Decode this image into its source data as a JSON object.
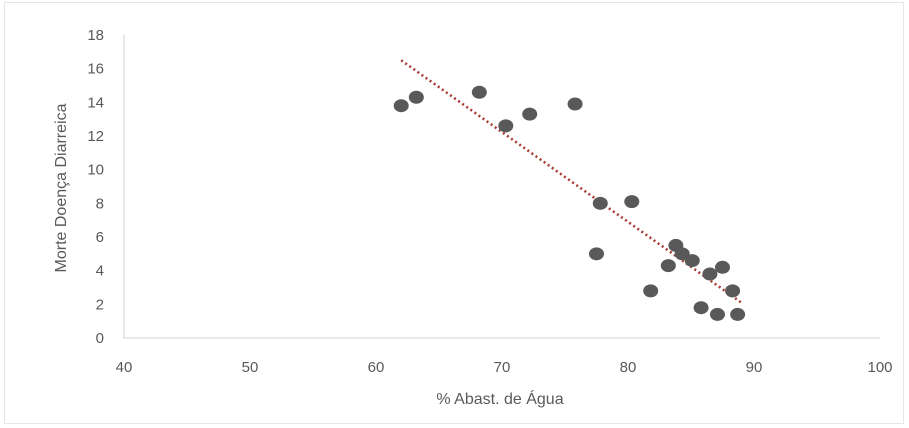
{
  "chart_data": {
    "type": "scatter",
    "title": "",
    "xlabel": "% Abast. de Água",
    "ylabel": "Morte Doença Diarreica",
    "xlim": [
      40,
      100
    ],
    "ylim": [
      0,
      18
    ],
    "x_ticks": [
      "40",
      "50",
      "60",
      "70",
      "80",
      "90",
      "100"
    ],
    "y_ticks": [
      "0",
      "2",
      "4",
      "6",
      "8",
      "10",
      "12",
      "14",
      "16",
      "18"
    ],
    "grid": false,
    "legend": "none",
    "marker_color": "#595959",
    "trendline": {
      "style": "dotted",
      "color": "#a83a32",
      "from": [
        62,
        16.5
      ],
      "to": [
        89,
        2.1
      ]
    },
    "points": [
      {
        "x": 62,
        "y": 13.8
      },
      {
        "x": 63.2,
        "y": 14.3
      },
      {
        "x": 68.2,
        "y": 14.6
      },
      {
        "x": 70.3,
        "y": 12.6
      },
      {
        "x": 72.2,
        "y": 13.3
      },
      {
        "x": 75.8,
        "y": 13.9
      },
      {
        "x": 77.5,
        "y": 5
      },
      {
        "x": 77.8,
        "y": 8
      },
      {
        "x": 80.3,
        "y": 8.1
      },
      {
        "x": 81.8,
        "y": 2.8
      },
      {
        "x": 83.2,
        "y": 4.3
      },
      {
        "x": 83.8,
        "y": 5.5
      },
      {
        "x": 84.3,
        "y": 5
      },
      {
        "x": 85.1,
        "y": 4.6
      },
      {
        "x": 85.8,
        "y": 1.8
      },
      {
        "x": 86.5,
        "y": 3.8
      },
      {
        "x": 87.1,
        "y": 1.4
      },
      {
        "x": 87.5,
        "y": 4.2
      },
      {
        "x": 88.3,
        "y": 2.8
      },
      {
        "x": 88.7,
        "y": 1.4
      }
    ]
  }
}
